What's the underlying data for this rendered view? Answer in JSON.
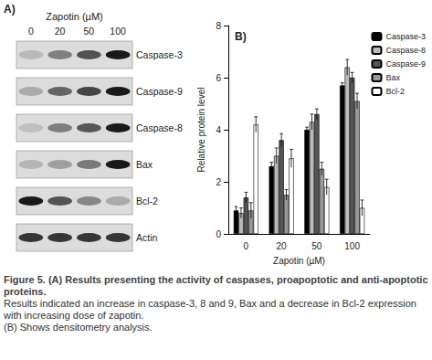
{
  "panel_a": {
    "label": "A)",
    "title": "Zapotin (µM)",
    "doses": [
      0,
      20,
      50,
      100
    ],
    "rows": [
      "Caspase-3",
      "Caspase-9",
      "Caspase-8",
      "Bax",
      "Bcl-2",
      "Actin"
    ]
  },
  "chart_data": {
    "type": "bar",
    "annotations": [
      "B)"
    ],
    "x_label": "Zapotin (µM)",
    "y_label": "Relative protein level",
    "categories": [
      "0",
      "20",
      "50",
      "100"
    ],
    "series": [
      {
        "name": "Caspase-3",
        "color": "#000000",
        "values": [
          0.9,
          2.6,
          4.0,
          5.7
        ],
        "errors": [
          0.15,
          0.15,
          0.1,
          0.1
        ]
      },
      {
        "name": "Caspase-8",
        "color": "#bbbbbb",
        "values": [
          0.8,
          3.0,
          4.3,
          6.4
        ],
        "errors": [
          0.2,
          0.3,
          0.3,
          0.3
        ]
      },
      {
        "name": "Caspase-9",
        "color": "#555555",
        "values": [
          1.4,
          3.6,
          4.6,
          6.0
        ],
        "errors": [
          0.2,
          0.25,
          0.2,
          0.2
        ]
      },
      {
        "name": "Bax",
        "color": "#999999",
        "values": [
          0.9,
          1.5,
          2.5,
          5.1
        ],
        "errors": [
          0.3,
          0.2,
          0.25,
          0.3
        ]
      },
      {
        "name": "Bcl-2",
        "color": "#ffffff",
        "values": [
          4.2,
          2.9,
          1.8,
          1.0
        ],
        "errors": [
          0.3,
          0.35,
          0.3,
          0.3
        ]
      }
    ],
    "ylim": [
      0,
      8
    ],
    "yticks": [
      0,
      2,
      4,
      6,
      8
    ],
    "grid": false,
    "legend": "upper right"
  },
  "caption": {
    "title": "Figure 5. (A) Results presenting the activity of caspases, proapoptotic and anti-apoptotic proteins.",
    "lines": [
      "Results indicated an increase in caspase-3, 8 and 9, Bax and a decrease in Bcl-2 expression with increasing dose of zapotin.",
      "(B) Shows densitometry analysis."
    ]
  }
}
